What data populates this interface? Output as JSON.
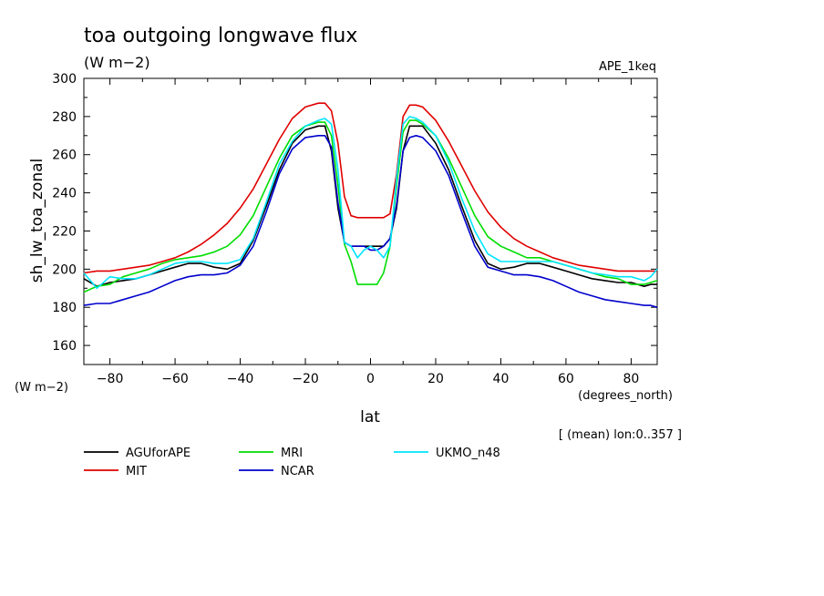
{
  "chart_data": {
    "type": "line",
    "title": "toa outgoing longwave flux",
    "units": "(W m−2)",
    "run_label": "APE_1keq",
    "ylabel": "sh_lw_toa_zonal",
    "yunits": "(W m−2)",
    "xlabel": "lat",
    "xunits": "(degrees_north)",
    "note": "[ (mean) lon:0..357 ]",
    "xlim": [
      -88,
      88
    ],
    "ylim": [
      150,
      300
    ],
    "xticks": [
      -80,
      -60,
      -40,
      -20,
      0,
      20,
      40,
      60,
      80
    ],
    "yticks": [
      160,
      180,
      200,
      220,
      240,
      260,
      280,
      300
    ],
    "x": [
      -88,
      -84,
      -80,
      -76,
      -72,
      -68,
      -64,
      -60,
      -56,
      -52,
      -48,
      -44,
      -40,
      -36,
      -32,
      -28,
      -24,
      -20,
      -16,
      -14,
      -12,
      -10,
      -8,
      -6,
      -4,
      -2,
      0,
      2,
      4,
      6,
      8,
      10,
      12,
      14,
      16,
      20,
      24,
      28,
      32,
      36,
      40,
      44,
      48,
      52,
      56,
      60,
      64,
      68,
      72,
      76,
      80,
      84,
      86,
      88
    ],
    "series": [
      {
        "name": "AGUforAPE",
        "color": "#000000",
        "values": [
          195,
          191,
          193,
          194,
          195,
          197,
          199,
          201,
          203,
          203,
          201,
          200,
          203,
          215,
          233,
          252,
          266,
          273,
          275,
          275,
          262,
          232,
          214,
          212,
          212,
          212,
          212,
          212,
          212,
          216,
          232,
          262,
          275,
          275,
          275,
          266,
          252,
          233,
          215,
          203,
          200,
          201,
          203,
          203,
          201,
          199,
          197,
          195,
          194,
          193,
          193,
          191,
          192,
          192
        ]
      },
      {
        "name": "MIT",
        "color": "#e00000",
        "values": [
          198,
          199,
          199,
          200,
          201,
          202,
          204,
          206,
          209,
          213,
          218,
          224,
          232,
          242,
          255,
          268,
          279,
          285,
          287,
          287,
          283,
          266,
          238,
          228,
          227,
          227,
          227,
          227,
          227,
          229,
          250,
          280,
          286,
          286,
          285,
          278,
          267,
          254,
          241,
          230,
          222,
          216,
          212,
          209,
          206,
          204,
          202,
          201,
          200,
          199,
          199,
          199,
          199,
          199
        ]
      },
      {
        "name": "MRI",
        "color": "#00dd00",
        "values": [
          188,
          191,
          192,
          196,
          198,
          200,
          203,
          205,
          206,
          207,
          209,
          212,
          218,
          228,
          243,
          258,
          270,
          275,
          277,
          277,
          270,
          244,
          213,
          204,
          192,
          192,
          192,
          192,
          198,
          212,
          244,
          272,
          278,
          278,
          276,
          270,
          258,
          243,
          228,
          217,
          212,
          209,
          206,
          206,
          204,
          202,
          200,
          198,
          196,
          195,
          192,
          192,
          193,
          194
        ]
      },
      {
        "name": "NCAR",
        "color": "#0000cc",
        "values": [
          181,
          182,
          182,
          184,
          186,
          188,
          191,
          194,
          196,
          197,
          197,
          198,
          202,
          212,
          230,
          250,
          263,
          269,
          270,
          270,
          264,
          235,
          214,
          212,
          212,
          212,
          210,
          210,
          212,
          216,
          234,
          262,
          269,
          270,
          269,
          262,
          249,
          230,
          212,
          201,
          199,
          197,
          197,
          196,
          194,
          191,
          188,
          186,
          184,
          183,
          182,
          181,
          181,
          180
        ]
      },
      {
        "name": "UKMO_n48",
        "color": "#00e5ff",
        "values": [
          198,
          190,
          196,
          195,
          195,
          197,
          200,
          203,
          204,
          204,
          203,
          203,
          205,
          216,
          235,
          255,
          267,
          275,
          278,
          279,
          276,
          252,
          214,
          212,
          206,
          210,
          212,
          210,
          206,
          212,
          248,
          276,
          280,
          279,
          277,
          270,
          256,
          237,
          220,
          208,
          204,
          204,
          204,
          204,
          204,
          202,
          200,
          198,
          197,
          196,
          196,
          194,
          196,
          200
        ]
      }
    ],
    "legend": {
      "placement": "bottom",
      "columns": [
        [
          "AGUforAPE",
          "MIT"
        ],
        [
          "MRI",
          "NCAR"
        ],
        [
          "UKMO_n48"
        ]
      ]
    },
    "grid": false
  }
}
